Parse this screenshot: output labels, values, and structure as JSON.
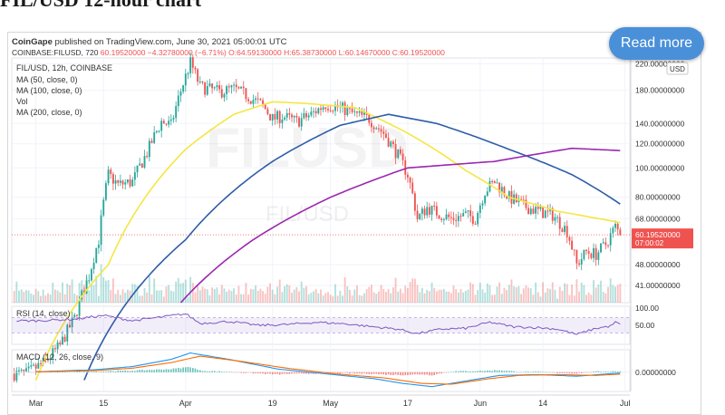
{
  "article": {
    "title": "FIL/USD 12-hour chart"
  },
  "read_more": {
    "label": "Read more"
  },
  "header": {
    "publish_line": "CoinGape published on TradingView.com, June 30, 2021 05:00:01 UTC",
    "symbol_line": {
      "symbol": "COINBASE:FILUSD, 720",
      "price": "60.19520000",
      "change": "−4.32780000 (−6.71%)",
      "open": "O:64.59130000",
      "high": "H:65.38730000",
      "low": "L:60.14670000",
      "close": "C:60.19520000"
    }
  },
  "colors": {
    "up": "#26a69a",
    "down": "#ef5350",
    "ma50": "#f5e642",
    "ma100": "#2f5ca8",
    "ma200": "#9c27b0",
    "rsi": "#7e57c2",
    "macd": "#2196f3",
    "signal": "#ff6d00",
    "price_tag": "#ef5350"
  },
  "chart_data": [
    {
      "type": "candlestick",
      "title": "FIL/USD, 12h, COINBASE",
      "watermark": "FILUSD",
      "watermark_sub": "FIL/USD",
      "legend": [
        "MA (50, close, 0)",
        "MA (100, close, 0)",
        "Vol",
        "MA (200, close, 0)"
      ],
      "currency_badge": "USD",
      "x_ticks": [
        {
          "label": "Mar",
          "day": 0
        },
        {
          "label": "15",
          "day": 14
        },
        {
          "label": "Apr",
          "day": 31
        },
        {
          "label": "19",
          "day": 49
        },
        {
          "label": "May",
          "day": 61
        },
        {
          "label": "17",
          "day": 77
        },
        {
          "label": "Jun",
          "day": 92
        },
        {
          "label": "14",
          "day": 105
        },
        {
          "label": "Jul",
          "day": 122
        }
      ],
      "y_scale": "log",
      "ylim": [
        36,
        230
      ],
      "y_ticks": [
        {
          "label": "220.00000000",
          "value": 220
        },
        {
          "label": "180.00000000",
          "value": 180
        },
        {
          "label": "140.00000000",
          "value": 140
        },
        {
          "label": "120.00000000",
          "value": 120
        },
        {
          "label": "100.00000000",
          "value": 100
        },
        {
          "label": "80.00000000",
          "value": 80
        },
        {
          "label": "68.00000000",
          "value": 68
        },
        {
          "label": "48.00000000",
          "value": 48
        },
        {
          "label": "41.00000000",
          "value": 41
        }
      ],
      "last_price": {
        "label": "60.19520000",
        "countdown": "07:00:02",
        "value": 60.1952
      },
      "candle_anchors": [
        {
          "day": -2,
          "close": 21
        },
        {
          "day": 2,
          "close": 23
        },
        {
          "day": 5,
          "close": 26
        },
        {
          "day": 8,
          "close": 32
        },
        {
          "day": 11,
          "close": 44
        },
        {
          "day": 13,
          "close": 58
        },
        {
          "day": 15,
          "close": 95
        },
        {
          "day": 17,
          "close": 88
        },
        {
          "day": 20,
          "close": 90
        },
        {
          "day": 23,
          "close": 112
        },
        {
          "day": 26,
          "close": 142
        },
        {
          "day": 28,
          "close": 138
        },
        {
          "day": 31,
          "close": 200
        },
        {
          "day": 32,
          "close": 222
        },
        {
          "day": 34,
          "close": 185
        },
        {
          "day": 38,
          "close": 178
        },
        {
          "day": 41,
          "close": 182
        },
        {
          "day": 44,
          "close": 172
        },
        {
          "day": 47,
          "close": 160
        },
        {
          "day": 49,
          "close": 145
        },
        {
          "day": 51,
          "close": 148
        },
        {
          "day": 54,
          "close": 142
        },
        {
          "day": 57,
          "close": 150
        },
        {
          "day": 60,
          "close": 162
        },
        {
          "day": 63,
          "close": 158
        },
        {
          "day": 66,
          "close": 150
        },
        {
          "day": 69,
          "close": 145
        },
        {
          "day": 72,
          "close": 130
        },
        {
          "day": 75,
          "close": 110
        },
        {
          "day": 77,
          "close": 95
        },
        {
          "day": 79,
          "close": 68
        },
        {
          "day": 81,
          "close": 74
        },
        {
          "day": 84,
          "close": 70
        },
        {
          "day": 86,
          "close": 68
        },
        {
          "day": 89,
          "close": 70
        },
        {
          "day": 91,
          "close": 68
        },
        {
          "day": 93,
          "close": 84
        },
        {
          "day": 95,
          "close": 90
        },
        {
          "day": 98,
          "close": 80
        },
        {
          "day": 101,
          "close": 75
        },
        {
          "day": 104,
          "close": 72
        },
        {
          "day": 107,
          "close": 70
        },
        {
          "day": 110,
          "close": 62
        },
        {
          "day": 112,
          "close": 48
        },
        {
          "day": 114,
          "close": 53
        },
        {
          "day": 116,
          "close": 52
        },
        {
          "day": 118,
          "close": 56
        },
        {
          "day": 120,
          "close": 64
        },
        {
          "day": 121,
          "close": 60.2
        }
      ],
      "ma50": [
        {
          "day": 0,
          "value": 20
        },
        {
          "day": 15,
          "value": 48
        },
        {
          "day": 31,
          "value": 115
        },
        {
          "day": 41,
          "value": 150
        },
        {
          "day": 49,
          "value": 165
        },
        {
          "day": 56,
          "value": 163
        },
        {
          "day": 66,
          "value": 158
        },
        {
          "day": 77,
          "value": 130
        },
        {
          "day": 89,
          "value": 98
        },
        {
          "day": 98,
          "value": 80
        },
        {
          "day": 108,
          "value": 72
        },
        {
          "day": 121,
          "value": 66
        }
      ],
      "ma100": [
        {
          "day": 10,
          "value": 20
        },
        {
          "day": 31,
          "value": 58
        },
        {
          "day": 49,
          "value": 105
        },
        {
          "day": 63,
          "value": 138
        },
        {
          "day": 73,
          "value": 150
        },
        {
          "day": 83,
          "value": 140
        },
        {
          "day": 98,
          "value": 115
        },
        {
          "day": 111,
          "value": 95
        },
        {
          "day": 121,
          "value": 76
        }
      ],
      "ma200": [
        {
          "day": 30,
          "value": 36
        },
        {
          "day": 45,
          "value": 58
        },
        {
          "day": 61,
          "value": 80
        },
        {
          "day": 77,
          "value": 100
        },
        {
          "day": 95,
          "value": 105
        },
        {
          "day": 111,
          "value": 116
        },
        {
          "day": 121,
          "value": 114
        }
      ]
    },
    {
      "type": "line",
      "title": "RSI (14, close)",
      "y_ticks": [
        {
          "label": "100.00",
          "value": 100
        },
        {
          "label": "50.00",
          "value": 50
        }
      ],
      "band": [
        30,
        70
      ],
      "ylim": [
        0,
        100
      ],
      "values": [
        {
          "day": 0,
          "value": 62
        },
        {
          "day": 8,
          "value": 66
        },
        {
          "day": 14,
          "value": 76
        },
        {
          "day": 20,
          "value": 62
        },
        {
          "day": 25,
          "value": 70
        },
        {
          "day": 31,
          "value": 80
        },
        {
          "day": 34,
          "value": 55
        },
        {
          "day": 40,
          "value": 60
        },
        {
          "day": 46,
          "value": 50
        },
        {
          "day": 52,
          "value": 52
        },
        {
          "day": 58,
          "value": 58
        },
        {
          "day": 64,
          "value": 54
        },
        {
          "day": 70,
          "value": 46
        },
        {
          "day": 75,
          "value": 40
        },
        {
          "day": 79,
          "value": 28
        },
        {
          "day": 84,
          "value": 40
        },
        {
          "day": 89,
          "value": 42
        },
        {
          "day": 94,
          "value": 58
        },
        {
          "day": 99,
          "value": 46
        },
        {
          "day": 104,
          "value": 44
        },
        {
          "day": 108,
          "value": 40
        },
        {
          "day": 112,
          "value": 26
        },
        {
          "day": 116,
          "value": 42
        },
        {
          "day": 119,
          "value": 48
        },
        {
          "day": 120,
          "value": 58
        },
        {
          "day": 121,
          "value": 52
        }
      ]
    },
    {
      "type": "bar",
      "title": "MACD (12, 26, close, 9)",
      "y_ticks": [
        {
          "label": "0.00000000",
          "value": 0
        }
      ],
      "ylim": [
        -12,
        14
      ],
      "macd": [
        {
          "day": 0,
          "value": 0.3
        },
        {
          "day": 12,
          "value": 1.5
        },
        {
          "day": 20,
          "value": 3.5
        },
        {
          "day": 28,
          "value": 8
        },
        {
          "day": 32,
          "value": 12
        },
        {
          "day": 40,
          "value": 8
        },
        {
          "day": 50,
          "value": 2
        },
        {
          "day": 60,
          "value": -1
        },
        {
          "day": 70,
          "value": -4
        },
        {
          "day": 76,
          "value": -7
        },
        {
          "day": 82,
          "value": -9
        },
        {
          "day": 90,
          "value": -5
        },
        {
          "day": 96,
          "value": -2
        },
        {
          "day": 104,
          "value": -1.5
        },
        {
          "day": 112,
          "value": -2.5
        },
        {
          "day": 121,
          "value": -0.5
        }
      ],
      "signal": [
        {
          "day": 0,
          "value": 0.2
        },
        {
          "day": 12,
          "value": 1
        },
        {
          "day": 20,
          "value": 2.5
        },
        {
          "day": 28,
          "value": 6
        },
        {
          "day": 34,
          "value": 10
        },
        {
          "day": 42,
          "value": 7
        },
        {
          "day": 52,
          "value": 2.5
        },
        {
          "day": 62,
          "value": -1
        },
        {
          "day": 72,
          "value": -3.5
        },
        {
          "day": 80,
          "value": -7
        },
        {
          "day": 86,
          "value": -7.5
        },
        {
          "day": 94,
          "value": -4
        },
        {
          "day": 100,
          "value": -2
        },
        {
          "day": 108,
          "value": -1.5
        },
        {
          "day": 116,
          "value": -2
        },
        {
          "day": 121,
          "value": -1.2
        }
      ]
    }
  ]
}
